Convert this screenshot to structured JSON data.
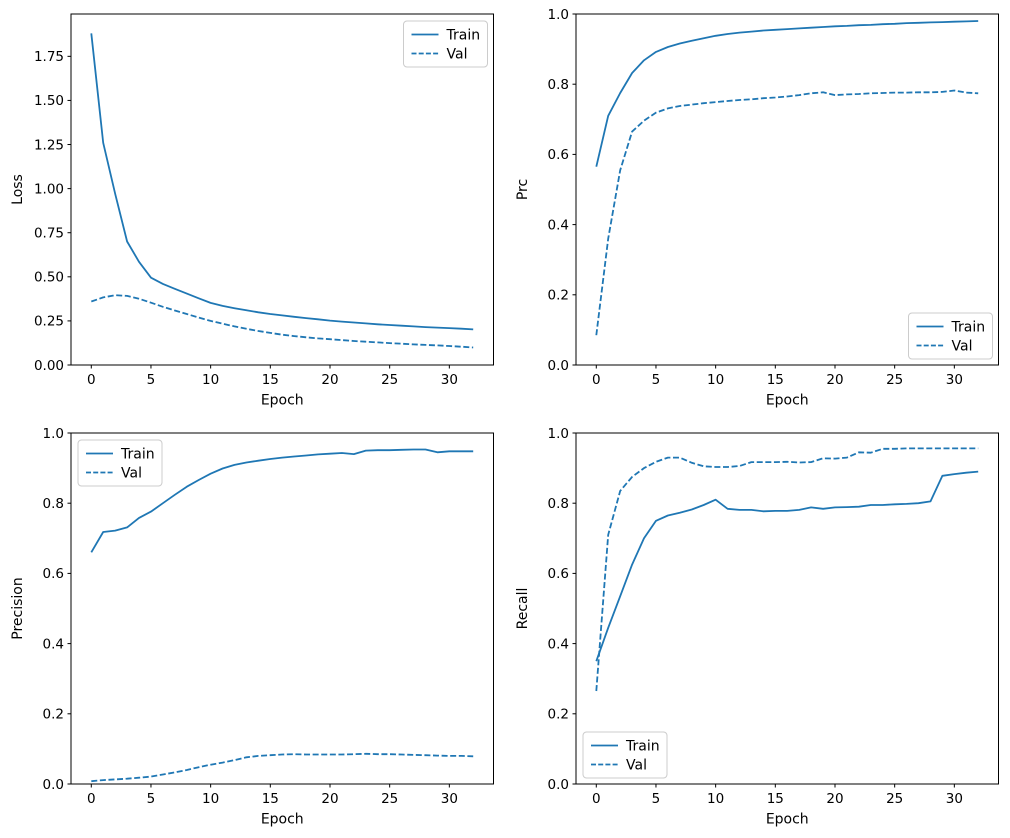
{
  "figure": {
    "background": "#ffffff",
    "frame_color": "#000000",
    "text_color": "#000000",
    "accent_color": "#1f77b4",
    "legend_border_color": "#cccccc"
  },
  "chart_data": [
    {
      "type": "line",
      "title": "",
      "xlabel": "Epoch",
      "ylabel": "Loss",
      "grid": false,
      "xlim": [
        -1.7,
        33.7
      ],
      "ylim": [
        0,
        1.99
      ],
      "xticks": [
        0,
        5,
        10,
        15,
        20,
        25,
        30
      ],
      "yticks": [
        0,
        0.25,
        0.5,
        0.75,
        1.0,
        1.25,
        1.5,
        1.75
      ],
      "ytick_labels": [
        "0.00",
        "0.25",
        "0.50",
        "0.75",
        "1.00",
        "1.25",
        "1.50",
        "1.75"
      ],
      "legend_position": "upper-right",
      "x": [
        0,
        1,
        2,
        3,
        4,
        5,
        6,
        7,
        8,
        9,
        10,
        11,
        12,
        13,
        14,
        15,
        16,
        17,
        18,
        19,
        20,
        21,
        22,
        23,
        24,
        25,
        26,
        27,
        28,
        29,
        30,
        31,
        32
      ],
      "series": [
        {
          "name": "Train",
          "line_style": "solid",
          "color": "#1f77b4",
          "values": [
            1.88,
            1.26,
            0.97,
            0.7,
            0.585,
            0.495,
            0.46,
            0.432,
            0.405,
            0.378,
            0.352,
            0.335,
            0.322,
            0.31,
            0.299,
            0.289,
            0.281,
            0.273,
            0.266,
            0.259,
            0.252,
            0.246,
            0.241,
            0.236,
            0.231,
            0.227,
            0.223,
            0.219,
            0.215,
            0.212,
            0.209,
            0.206,
            0.202
          ]
        },
        {
          "name": "Val",
          "line_style": "dashed",
          "color": "#1f77b4",
          "values": [
            0.36,
            0.383,
            0.396,
            0.392,
            0.376,
            0.353,
            0.33,
            0.309,
            0.289,
            0.269,
            0.25,
            0.234,
            0.219,
            0.205,
            0.193,
            0.182,
            0.172,
            0.164,
            0.157,
            0.151,
            0.146,
            0.141,
            0.136,
            0.132,
            0.128,
            0.124,
            0.121,
            0.117,
            0.114,
            0.111,
            0.108,
            0.104,
            0.099
          ]
        }
      ]
    },
    {
      "type": "line",
      "title": "",
      "xlabel": "Epoch",
      "ylabel": "Prc",
      "grid": false,
      "xlim": [
        -1.7,
        33.7
      ],
      "ylim": [
        0,
        1.0
      ],
      "xticks": [
        0,
        5,
        10,
        15,
        20,
        25,
        30
      ],
      "yticks": [
        0,
        0.2,
        0.4,
        0.6,
        0.8,
        1.0
      ],
      "ytick_labels": [
        "0.0",
        "0.2",
        "0.4",
        "0.6",
        "0.8",
        "1.0"
      ],
      "legend_position": "lower-right",
      "x": [
        0,
        1,
        2,
        3,
        4,
        5,
        6,
        7,
        8,
        9,
        10,
        11,
        12,
        13,
        14,
        15,
        16,
        17,
        18,
        19,
        20,
        21,
        22,
        23,
        24,
        25,
        26,
        27,
        28,
        29,
        30,
        31,
        32
      ],
      "series": [
        {
          "name": "Train",
          "line_style": "solid",
          "color": "#1f77b4",
          "values": [
            0.565,
            0.71,
            0.775,
            0.832,
            0.868,
            0.892,
            0.906,
            0.916,
            0.924,
            0.931,
            0.938,
            0.943,
            0.947,
            0.95,
            0.953,
            0.955,
            0.957,
            0.959,
            0.961,
            0.963,
            0.965,
            0.966,
            0.968,
            0.969,
            0.971,
            0.972,
            0.974,
            0.975,
            0.976,
            0.977,
            0.978,
            0.979,
            0.98
          ]
        },
        {
          "name": "Val",
          "line_style": "dashed",
          "color": "#1f77b4",
          "values": [
            0.085,
            0.36,
            0.555,
            0.665,
            0.696,
            0.719,
            0.731,
            0.738,
            0.742,
            0.746,
            0.749,
            0.752,
            0.755,
            0.757,
            0.76,
            0.762,
            0.765,
            0.769,
            0.774,
            0.777,
            0.769,
            0.771,
            0.772,
            0.774,
            0.775,
            0.776,
            0.776,
            0.777,
            0.777,
            0.778,
            0.782,
            0.776,
            0.774
          ]
        }
      ]
    },
    {
      "type": "line",
      "title": "",
      "xlabel": "Epoch",
      "ylabel": "Precision",
      "grid": false,
      "xlim": [
        -1.7,
        33.7
      ],
      "ylim": [
        0,
        1.0
      ],
      "xticks": [
        0,
        5,
        10,
        15,
        20,
        25,
        30
      ],
      "yticks": [
        0,
        0.2,
        0.4,
        0.6,
        0.8,
        1.0
      ],
      "ytick_labels": [
        "0.0",
        "0.2",
        "0.4",
        "0.6",
        "0.8",
        "1.0"
      ],
      "legend_position": "upper-left",
      "x": [
        0,
        1,
        2,
        3,
        4,
        5,
        6,
        7,
        8,
        9,
        10,
        11,
        12,
        13,
        14,
        15,
        16,
        17,
        18,
        19,
        20,
        21,
        22,
        23,
        24,
        25,
        26,
        27,
        28,
        29,
        30,
        31,
        32
      ],
      "series": [
        {
          "name": "Train",
          "line_style": "solid",
          "color": "#1f77b4",
          "values": [
            0.66,
            0.718,
            0.722,
            0.731,
            0.758,
            0.776,
            0.8,
            0.824,
            0.847,
            0.866,
            0.884,
            0.899,
            0.909,
            0.916,
            0.921,
            0.926,
            0.93,
            0.933,
            0.936,
            0.939,
            0.941,
            0.943,
            0.94,
            0.95,
            0.951,
            0.951,
            0.952,
            0.953,
            0.953,
            0.945,
            0.948,
            0.948,
            0.948
          ]
        },
        {
          "name": "Val",
          "line_style": "dashed",
          "color": "#1f77b4",
          "values": [
            0.008,
            0.011,
            0.013,
            0.015,
            0.018,
            0.021,
            0.027,
            0.033,
            0.04,
            0.048,
            0.055,
            0.061,
            0.068,
            0.076,
            0.08,
            0.082,
            0.084,
            0.085,
            0.084,
            0.084,
            0.084,
            0.084,
            0.085,
            0.086,
            0.085,
            0.085,
            0.084,
            0.083,
            0.082,
            0.081,
            0.08,
            0.08,
            0.079
          ]
        }
      ]
    },
    {
      "type": "line",
      "title": "",
      "xlabel": "Epoch",
      "ylabel": "Recall",
      "grid": false,
      "xlim": [
        -1.7,
        33.7
      ],
      "ylim": [
        0,
        1.0
      ],
      "xticks": [
        0,
        5,
        10,
        15,
        20,
        25,
        30
      ],
      "yticks": [
        0,
        0.2,
        0.4,
        0.6,
        0.8,
        1.0
      ],
      "ytick_labels": [
        "0.0",
        "0.2",
        "0.4",
        "0.6",
        "0.8",
        "1.0"
      ],
      "legend_position": "lower-left",
      "x": [
        0,
        1,
        2,
        3,
        4,
        5,
        6,
        7,
        8,
        9,
        10,
        11,
        12,
        13,
        14,
        15,
        16,
        17,
        18,
        19,
        20,
        21,
        22,
        23,
        24,
        25,
        26,
        27,
        28,
        29,
        30,
        31,
        32
      ],
      "series": [
        {
          "name": "Train",
          "line_style": "solid",
          "color": "#1f77b4",
          "values": [
            0.35,
            0.445,
            0.535,
            0.625,
            0.7,
            0.75,
            0.765,
            0.773,
            0.782,
            0.795,
            0.81,
            0.784,
            0.781,
            0.781,
            0.777,
            0.778,
            0.778,
            0.781,
            0.788,
            0.784,
            0.788,
            0.789,
            0.79,
            0.795,
            0.795,
            0.797,
            0.798,
            0.8,
            0.805,
            0.878,
            0.883,
            0.887,
            0.89
          ]
        },
        {
          "name": "Val",
          "line_style": "dashed",
          "color": "#1f77b4",
          "values": [
            0.265,
            0.71,
            0.835,
            0.875,
            0.9,
            0.918,
            0.93,
            0.93,
            0.915,
            0.905,
            0.903,
            0.903,
            0.906,
            0.917,
            0.917,
            0.917,
            0.918,
            0.916,
            0.917,
            0.928,
            0.927,
            0.93,
            0.945,
            0.944,
            0.955,
            0.955,
            0.956,
            0.956,
            0.956,
            0.956,
            0.956,
            0.956,
            0.956
          ]
        }
      ]
    }
  ]
}
